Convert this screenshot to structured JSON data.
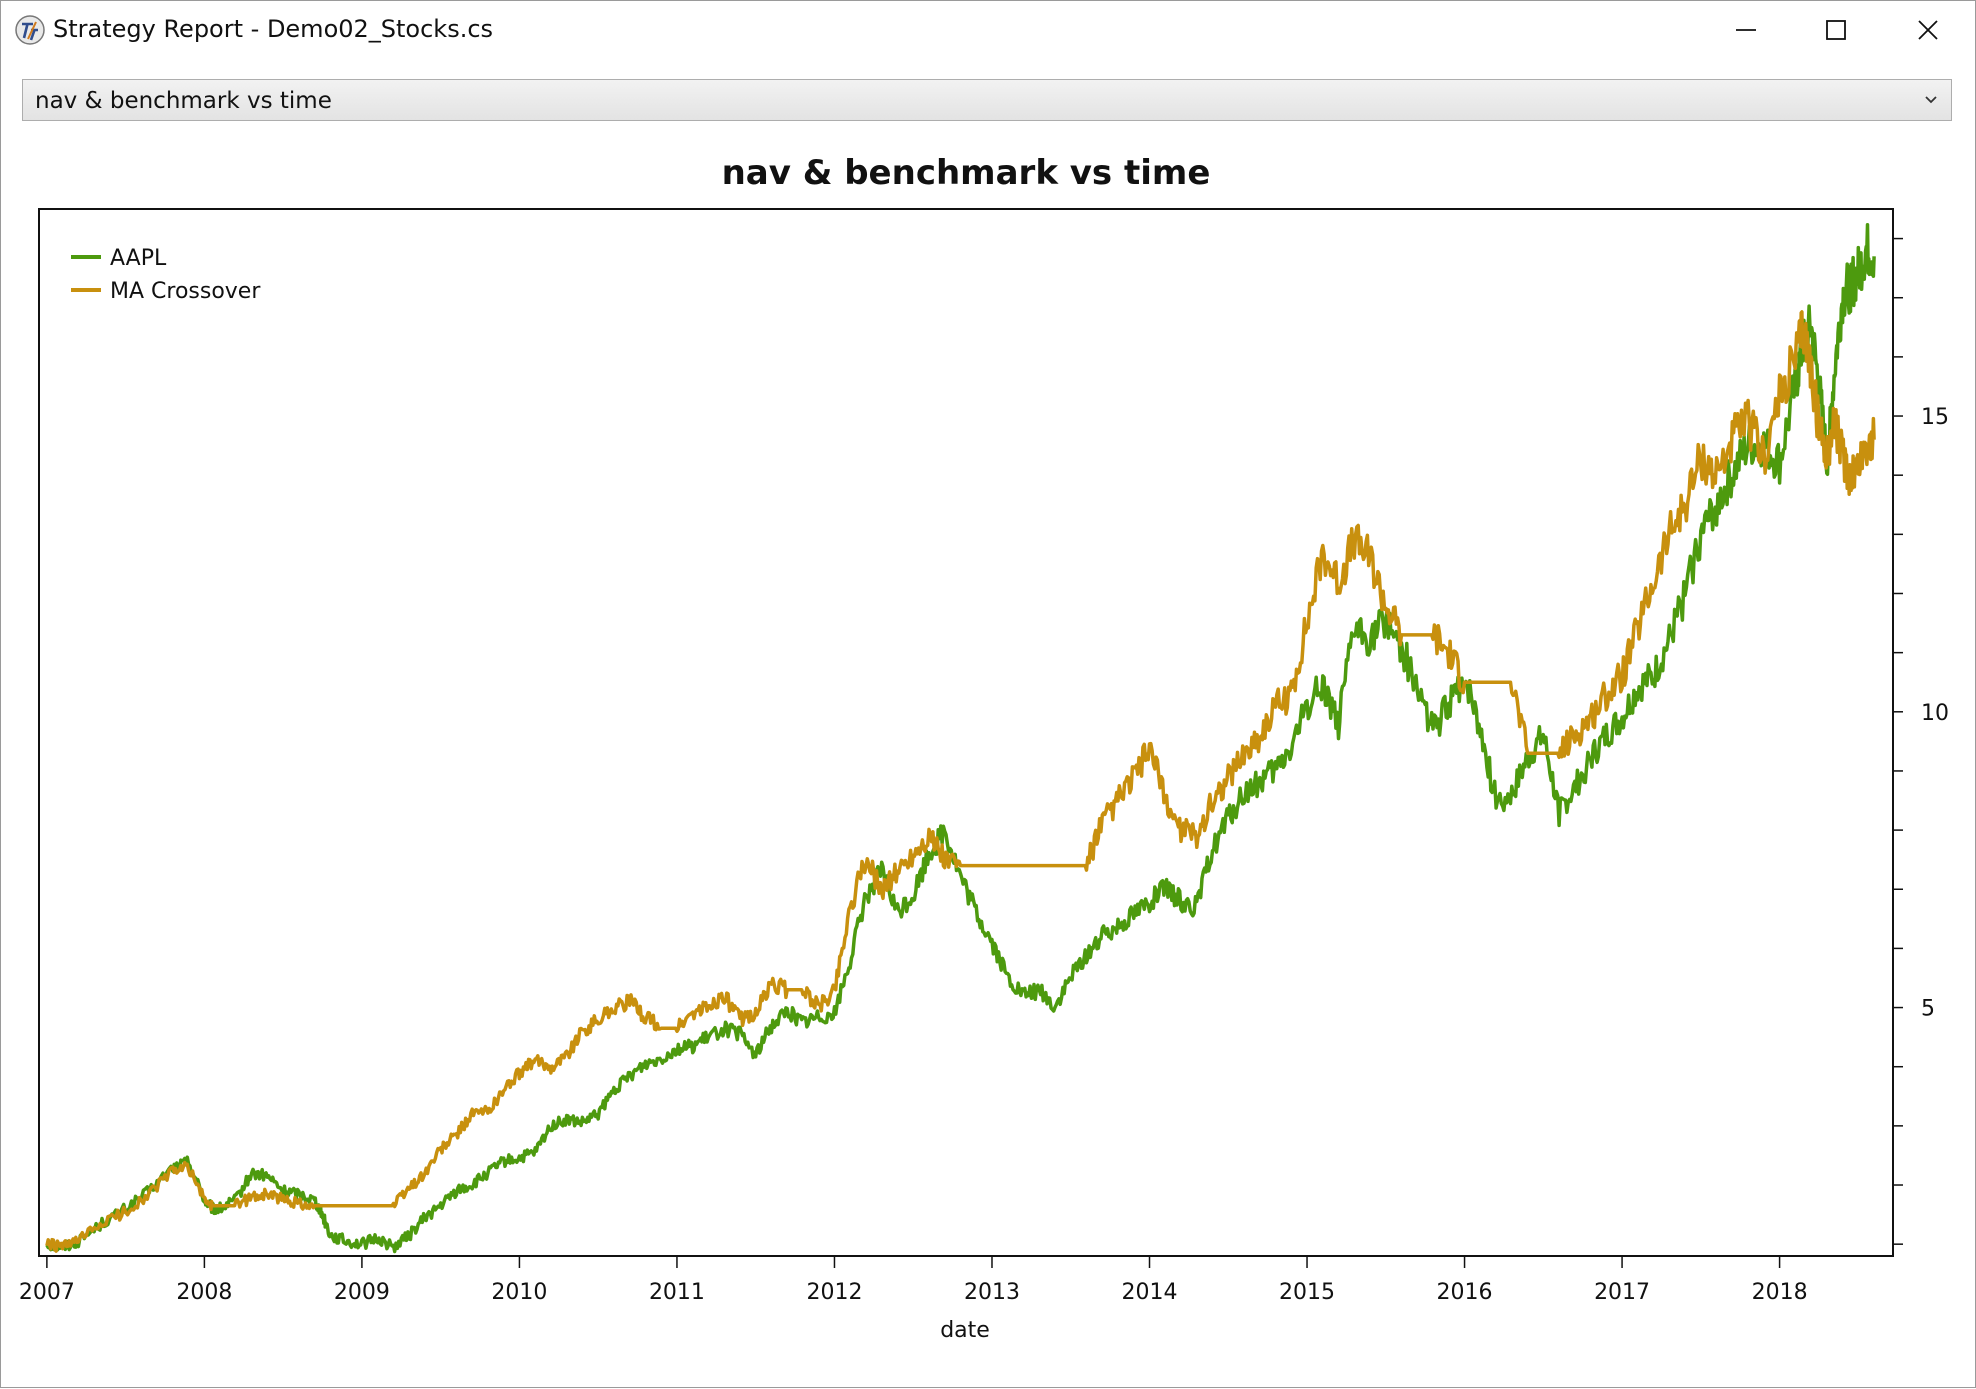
{
  "window": {
    "title": "Strategy Report - Demo02_Stocks.cs",
    "controls": [
      "minimize",
      "maximize",
      "close"
    ]
  },
  "dropdown": {
    "selected": "nav & benchmark vs time"
  },
  "colors": {
    "aapl": "#4d9a0e",
    "ma_crossover": "#c8900e"
  },
  "chart_data": {
    "type": "line",
    "title": "nav & benchmark vs time",
    "xlabel": "date",
    "ylabel": "",
    "xlim": [
      2006.95,
      2018.72
    ],
    "ylim": [
      0.8,
      18.5
    ],
    "x_ticks": [
      "2007",
      "2008",
      "2009",
      "2010",
      "2011",
      "2012",
      "2013",
      "2014",
      "2015",
      "2016",
      "2017",
      "2018"
    ],
    "y_tick_labels": [
      5,
      10,
      15
    ],
    "y_minor_ticks": [
      1,
      2,
      3,
      4,
      5,
      6,
      7,
      8,
      9,
      10,
      11,
      12,
      13,
      14,
      15,
      16,
      17,
      18
    ],
    "legend_position": "top-left",
    "series": [
      {
        "name": "AAPL",
        "color": "#4d9a0e",
        "x": [
          2007.0,
          2007.1,
          2007.2,
          2007.35,
          2007.5,
          2007.65,
          2007.8,
          2007.9,
          2008.0,
          2008.05,
          2008.1,
          2008.2,
          2008.3,
          2008.4,
          2008.5,
          2008.6,
          2008.7,
          2008.75,
          2008.8,
          2008.9,
          2009.0,
          2009.1,
          2009.2,
          2009.3,
          2009.4,
          2009.5,
          2009.6,
          2009.7,
          2009.8,
          2009.9,
          2010.0,
          2010.1,
          2010.2,
          2010.3,
          2010.4,
          2010.5,
          2010.6,
          2010.7,
          2010.8,
          2010.9,
          2011.0,
          2011.1,
          2011.2,
          2011.3,
          2011.4,
          2011.5,
          2011.6,
          2011.7,
          2011.8,
          2011.9,
          2012.0,
          2012.1,
          2012.2,
          2012.3,
          2012.4,
          2012.5,
          2012.6,
          2012.7,
          2012.8,
          2012.9,
          2013.0,
          2013.1,
          2013.2,
          2013.3,
          2013.4,
          2013.5,
          2013.6,
          2013.7,
          2013.8,
          2013.9,
          2014.0,
          2014.1,
          2014.2,
          2014.3,
          2014.4,
          2014.5,
          2014.6,
          2014.7,
          2014.8,
          2014.9,
          2015.0,
          2015.1,
          2015.2,
          2015.3,
          2015.4,
          2015.5,
          2015.6,
          2015.7,
          2015.8,
          2015.9,
          2016.0,
          2016.1,
          2016.2,
          2016.3,
          2016.4,
          2016.5,
          2016.6,
          2016.7,
          2016.8,
          2016.9,
          2017.0,
          2017.1,
          2017.2,
          2017.3,
          2017.4,
          2017.5,
          2017.6,
          2017.7,
          2017.8,
          2017.9,
          2018.0,
          2018.1,
          2018.15,
          2018.2,
          2018.25,
          2018.3,
          2018.35,
          2018.4,
          2018.45,
          2018.5,
          2018.55,
          2018.6
        ],
        "y": [
          1.0,
          0.95,
          1.05,
          1.35,
          1.6,
          1.9,
          2.3,
          2.4,
          1.75,
          1.6,
          1.6,
          1.75,
          2.2,
          2.15,
          1.9,
          1.85,
          1.75,
          1.5,
          1.15,
          1.05,
          1.0,
          1.1,
          0.95,
          1.15,
          1.45,
          1.65,
          1.9,
          2.0,
          2.2,
          2.4,
          2.45,
          2.55,
          3.0,
          3.1,
          3.05,
          3.2,
          3.6,
          3.85,
          4.05,
          4.15,
          4.3,
          4.35,
          4.5,
          4.65,
          4.55,
          4.2,
          4.7,
          4.95,
          4.75,
          4.85,
          4.9,
          5.8,
          6.9,
          7.3,
          6.6,
          6.9,
          7.6,
          8.0,
          7.2,
          6.6,
          6.1,
          5.5,
          5.2,
          5.3,
          5.0,
          5.5,
          5.9,
          6.2,
          6.4,
          6.6,
          6.8,
          7.0,
          6.8,
          6.7,
          7.7,
          8.2,
          8.6,
          8.8,
          9.0,
          9.4,
          10.1,
          10.5,
          9.8,
          11.4,
          11.2,
          11.6,
          11.1,
          10.4,
          9.7,
          10.1,
          10.6,
          9.7,
          8.5,
          8.6,
          9.2,
          9.6,
          8.3,
          8.7,
          9.2,
          9.6,
          9.9,
          10.4,
          10.6,
          11.2,
          12.0,
          13.0,
          13.5,
          14.0,
          14.5,
          14.5,
          14.2,
          15.5,
          16.2,
          16.5,
          15.5,
          14.2,
          15.8,
          17.0,
          17.2,
          17.4,
          17.8,
          17.7
        ]
      },
      {
        "name": "MA Crossover",
        "color": "#c8900e",
        "x": [
          2007.0,
          2007.1,
          2007.2,
          2007.35,
          2007.5,
          2007.65,
          2007.8,
          2007.9,
          2008.0,
          2008.05,
          2008.1,
          2008.2,
          2008.3,
          2008.4,
          2008.5,
          2008.6,
          2008.7,
          2008.75,
          2008.8,
          2008.9,
          2009.0,
          2009.1,
          2009.2,
          2009.3,
          2009.4,
          2009.5,
          2009.6,
          2009.7,
          2009.8,
          2009.9,
          2010.0,
          2010.1,
          2010.2,
          2010.3,
          2010.4,
          2010.5,
          2010.6,
          2010.7,
          2010.8,
          2010.9,
          2011.0,
          2011.1,
          2011.2,
          2011.3,
          2011.4,
          2011.5,
          2011.6,
          2011.7,
          2011.8,
          2011.9,
          2012.0,
          2012.1,
          2012.2,
          2012.3,
          2012.4,
          2012.5,
          2012.6,
          2012.7,
          2012.8,
          2012.9,
          2013.0,
          2013.1,
          2013.2,
          2013.3,
          2013.4,
          2013.5,
          2013.6,
          2013.7,
          2013.8,
          2013.9,
          2014.0,
          2014.1,
          2014.2,
          2014.3,
          2014.4,
          2014.5,
          2014.6,
          2014.7,
          2014.8,
          2014.9,
          2015.0,
          2015.1,
          2015.2,
          2015.3,
          2015.4,
          2015.5,
          2015.6,
          2015.7,
          2015.8,
          2015.9,
          2016.0,
          2016.1,
          2016.2,
          2016.3,
          2016.4,
          2016.5,
          2016.6,
          2016.7,
          2016.8,
          2016.9,
          2017.0,
          2017.1,
          2017.2,
          2017.3,
          2017.4,
          2017.5,
          2017.6,
          2017.7,
          2017.8,
          2017.9,
          2018.0,
          2018.1,
          2018.15,
          2018.2,
          2018.25,
          2018.3,
          2018.35,
          2018.4,
          2018.45,
          2018.5,
          2018.55,
          2018.6
        ],
        "y": [
          1.0,
          0.95,
          1.05,
          1.35,
          1.55,
          1.85,
          2.25,
          2.3,
          1.75,
          1.65,
          1.65,
          1.65,
          1.8,
          1.85,
          1.75,
          1.7,
          1.65,
          1.65,
          1.65,
          1.65,
          1.65,
          1.65,
          1.65,
          1.95,
          2.2,
          2.6,
          2.85,
          3.2,
          3.25,
          3.6,
          3.9,
          4.1,
          4.0,
          4.2,
          4.6,
          4.8,
          5.0,
          5.1,
          4.85,
          4.65,
          4.65,
          4.9,
          5.0,
          5.2,
          4.8,
          4.9,
          5.4,
          5.3,
          5.3,
          5.0,
          5.3,
          6.7,
          7.5,
          7.0,
          7.3,
          7.6,
          7.9,
          7.5,
          7.4,
          7.4,
          7.4,
          7.4,
          7.4,
          7.4,
          7.4,
          7.4,
          7.4,
          8.1,
          8.5,
          8.9,
          9.4,
          8.5,
          8.0,
          7.9,
          8.5,
          8.9,
          9.3,
          9.6,
          10.1,
          10.3,
          11.5,
          12.7,
          12.2,
          12.9,
          12.6,
          11.8,
          11.3,
          11.3,
          11.3,
          11.0,
          10.5,
          10.5,
          10.5,
          10.5,
          9.3,
          9.3,
          9.3,
          9.6,
          9.9,
          10.3,
          10.6,
          11.4,
          12.2,
          13.0,
          13.5,
          14.3,
          14.0,
          14.6,
          14.9,
          14.3,
          15.3,
          16.0,
          16.5,
          15.8,
          14.8,
          14.4,
          14.9,
          14.3,
          14.0,
          14.2,
          14.5,
          14.6
        ]
      }
    ]
  }
}
